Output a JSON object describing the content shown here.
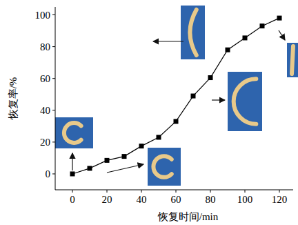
{
  "chart_data": {
    "type": "line",
    "x_label": "恢复时间/min",
    "y_label": "恢复率/%",
    "x": [
      0,
      10,
      20,
      30,
      40,
      50,
      60,
      70,
      80,
      90,
      100,
      110,
      120
    ],
    "values": [
      0,
      3.5,
      8.5,
      11,
      17.5,
      23,
      33,
      49,
      60.5,
      78,
      85.5,
      93,
      98
    ],
    "color": "#000000",
    "marker": "square",
    "line_style": "solid",
    "xlim": [
      -10,
      128
    ],
    "xticks": [
      0,
      20,
      40,
      60,
      80,
      100,
      120
    ],
    "ylim": [
      -10,
      105
    ],
    "yticks": [
      0,
      20,
      40,
      60,
      80,
      100
    ],
    "grid": false
  }
}
